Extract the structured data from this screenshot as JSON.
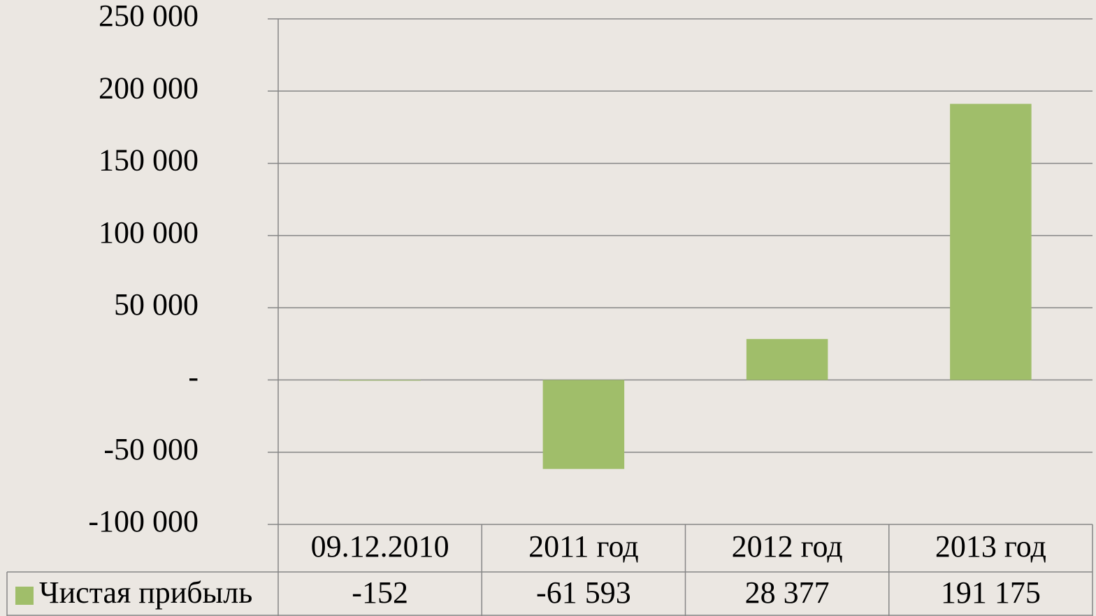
{
  "chart_data": {
    "type": "bar",
    "categories": [
      "09.12.2010",
      "2011 год",
      "2012 год",
      "2013 год"
    ],
    "series": [
      {
        "name": "Чистая прибыль",
        "color": "#a0be6a",
        "values": [
          -152,
          -61593,
          28377,
          191175
        ],
        "value_labels": [
          "-152",
          "-61 593",
          "28 377",
          "191 175"
        ]
      }
    ],
    "ylim": [
      -100000,
      250000
    ],
    "yticks": [
      {
        "value": -100000,
        "label": "-100 000"
      },
      {
        "value": -50000,
        "label": "-50 000"
      },
      {
        "value": 0,
        "label": "-"
      },
      {
        "value": 50000,
        "label": "50 000"
      },
      {
        "value": 100000,
        "label": "100 000"
      },
      {
        "value": 150000,
        "label": "150 000"
      },
      {
        "value": 200000,
        "label": "200 000"
      },
      {
        "value": 250000,
        "label": "250 000"
      }
    ],
    "grid": true,
    "data_table": true
  }
}
